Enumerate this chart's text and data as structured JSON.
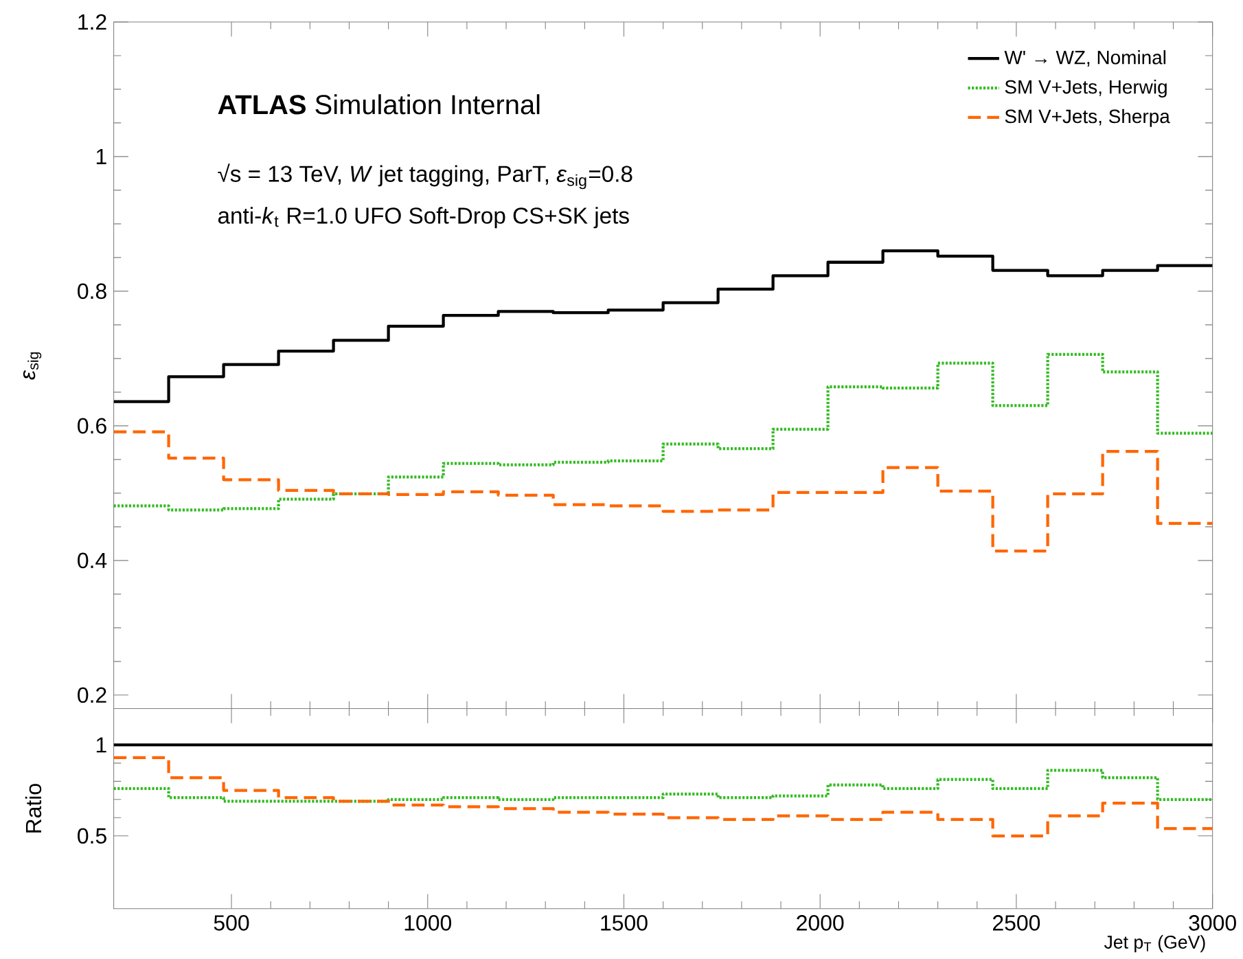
{
  "chart_data": [
    {
      "type": "histogram",
      "bins": [
        200,
        340,
        480,
        620,
        760,
        900,
        1040,
        1180,
        1320,
        1460,
        1600,
        1740,
        1880,
        2020,
        2160,
        2300,
        2440,
        2580,
        2720,
        2860,
        3000
      ],
      "ylabel": "*ε*$_{sig}$",
      "annotations": [
        "**ATLAS** Simulation Internal",
        "√s = 13 TeV, *W* jet tagging, ParT, *ε*$_{sig}$=0.8",
        "anti-*k*$_{t}$ R=1.0 UFO Soft-Drop CS+SK jets"
      ],
      "series": [
        {
          "name": "W' → WZ, Nominal",
          "color": "#000000",
          "line_style": "solid",
          "values": [
            0.636,
            0.673,
            0.691,
            0.711,
            0.727,
            0.748,
            0.764,
            0.77,
            0.768,
            0.772,
            0.783,
            0.803,
            0.823,
            0.843,
            0.86,
            0.852,
            0.831,
            0.823,
            0.831,
            0.838
          ]
        },
        {
          "name": "SM V+Jets, Herwig",
          "color": "#33bb22",
          "line_style": "dotted",
          "values": [
            0.481,
            0.475,
            0.477,
            0.491,
            0.499,
            0.524,
            0.544,
            0.542,
            0.546,
            0.548,
            0.573,
            0.566,
            0.595,
            0.658,
            0.656,
            0.693,
            0.63,
            0.706,
            0.68,
            0.589
          ]
        },
        {
          "name": "SM V+Jets, Sherpa",
          "color": "#ff6600",
          "line_style": "dashed",
          "values": [
            0.591,
            0.552,
            0.52,
            0.504,
            0.499,
            0.498,
            0.502,
            0.497,
            0.483,
            0.481,
            0.473,
            0.475,
            0.501,
            0.501,
            0.538,
            0.503,
            0.414,
            0.499,
            0.562,
            0.455
          ]
        }
      ],
      "xlim": [
        200,
        3000
      ],
      "ylim": [
        0.18,
        1.2
      ],
      "xticks": [
        500,
        1000,
        1500,
        2000,
        2500,
        3000
      ],
      "yticks": [
        0.2,
        0.4,
        0.6,
        0.8,
        1,
        1.2
      ],
      "tick_labels": "y",
      "legend": "top right"
    },
    {
      "type": "histogram",
      "bins": [
        200,
        340,
        480,
        620,
        760,
        900,
        1040,
        1180,
        1320,
        1460,
        1600,
        1740,
        1880,
        2020,
        2160,
        2300,
        2440,
        2580,
        2720,
        2860,
        3000
      ],
      "xlabel": "Jet p$_{T}$ (GeV)",
      "ylabel": "Ratio",
      "series": [
        {
          "color": "#33bb22",
          "line_style": "dotted",
          "values": [
            0.76,
            0.71,
            0.69,
            0.69,
            0.69,
            0.7,
            0.71,
            0.7,
            0.71,
            0.71,
            0.73,
            0.71,
            0.72,
            0.78,
            0.76,
            0.81,
            0.76,
            0.86,
            0.82,
            0.7
          ]
        },
        {
          "color": "#ff6600",
          "line_style": "dashed",
          "values": [
            0.93,
            0.82,
            0.75,
            0.71,
            0.69,
            0.67,
            0.66,
            0.65,
            0.63,
            0.62,
            0.6,
            0.59,
            0.61,
            0.59,
            0.63,
            0.59,
            0.5,
            0.61,
            0.68,
            0.54
          ]
        }
      ],
      "xlim": [
        200,
        3000
      ],
      "ylim": [
        0.1,
        1.2
      ],
      "xticks": [
        500,
        1000,
        1500,
        2000,
        2500,
        3000
      ],
      "yticks": [
        0.5,
        1
      ],
      "ref_lines": [
        {
          "axis": "y",
          "value": 1,
          "color": "#000000",
          "line_style": "solid"
        }
      ]
    }
  ]
}
